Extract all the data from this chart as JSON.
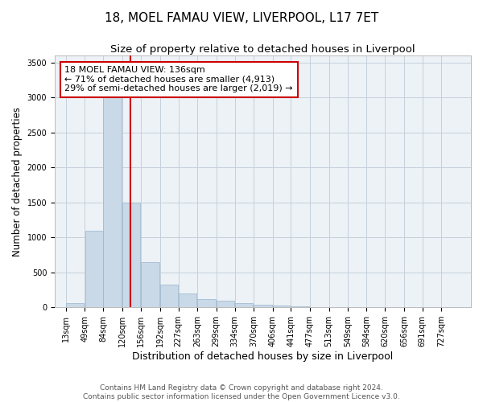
{
  "title": "18, MOEL FAMAU VIEW, LIVERPOOL, L17 7ET",
  "subtitle": "Size of property relative to detached houses in Liverpool",
  "xlabel": "Distribution of detached houses by size in Liverpool",
  "ylabel": "Number of detached properties",
  "bar_color": "#c9d9e8",
  "bar_edge_color": "#9ab5cb",
  "grid_color": "#c5d0dc",
  "background_color": "#edf2f7",
  "vline_value": 136,
  "vline_color": "#cc0000",
  "annotation_line1": "18 MOEL FAMAU VIEW: 136sqm",
  "annotation_line2": "← 71% of detached houses are smaller (4,913)",
  "annotation_line3": "29% of semi-detached houses are larger (2,019) →",
  "annotation_box_color": "#ffffff",
  "annotation_box_edge": "#cc0000",
  "categories": [
    "13sqm",
    "49sqm",
    "84sqm",
    "120sqm",
    "156sqm",
    "192sqm",
    "227sqm",
    "263sqm",
    "299sqm",
    "334sqm",
    "370sqm",
    "406sqm",
    "441sqm",
    "477sqm",
    "513sqm",
    "549sqm",
    "584sqm",
    "620sqm",
    "656sqm",
    "691sqm",
    "727sqm"
  ],
  "bin_left_edges": [
    13,
    49,
    84,
    120,
    156,
    192,
    227,
    263,
    299,
    334,
    370,
    406,
    441,
    477,
    513,
    549,
    584,
    620,
    656,
    691,
    727
  ],
  "bin_width": 35,
  "values": [
    55,
    1100,
    3050,
    1500,
    650,
    330,
    200,
    120,
    100,
    55,
    35,
    25,
    15,
    8,
    5,
    3,
    2,
    1,
    1,
    1,
    0
  ],
  "ylim": [
    0,
    3600
  ],
  "yticks": [
    0,
    500,
    1000,
    1500,
    2000,
    2500,
    3000,
    3500
  ],
  "footer_text": "Contains HM Land Registry data © Crown copyright and database right 2024.\nContains public sector information licensed under the Open Government Licence v3.0.",
  "title_fontsize": 11,
  "subtitle_fontsize": 9.5,
  "xlabel_fontsize": 9,
  "ylabel_fontsize": 8.5,
  "tick_fontsize": 7,
  "annotation_fontsize": 8,
  "footer_fontsize": 6.5
}
